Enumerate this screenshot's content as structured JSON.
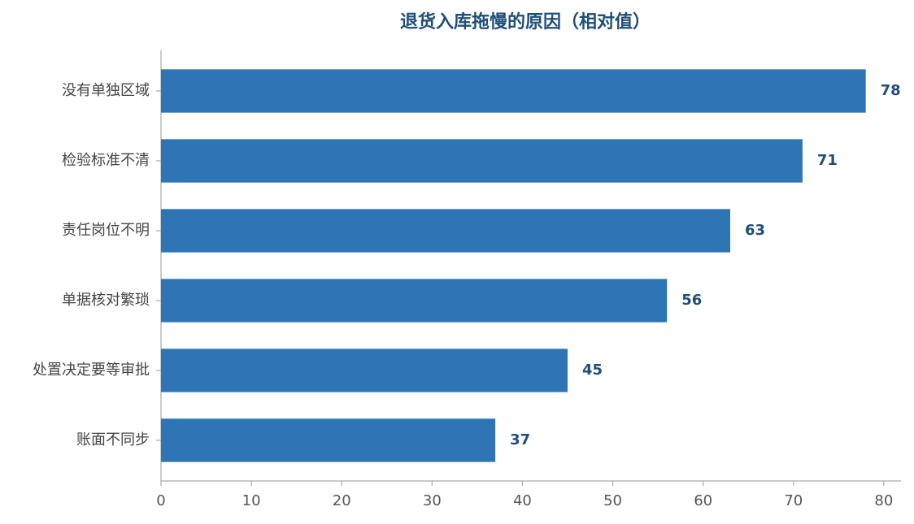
{
  "chart_data": {
    "type": "bar",
    "orientation": "horizontal",
    "title": "退货入库拖慢的原因（相对值）",
    "categories": [
      "没有单独区域",
      "检验标准不清",
      "责任岗位不明",
      "单据核对繁琐",
      "处置决定要等审批",
      "账面不同步"
    ],
    "values": [
      78,
      71,
      63,
      56,
      45,
      37
    ],
    "color": "#2e75b6",
    "xlim": [
      0,
      81.9
    ],
    "xticks": [
      0,
      10,
      20,
      30,
      40,
      50,
      60,
      70,
      80
    ],
    "grid": false
  }
}
